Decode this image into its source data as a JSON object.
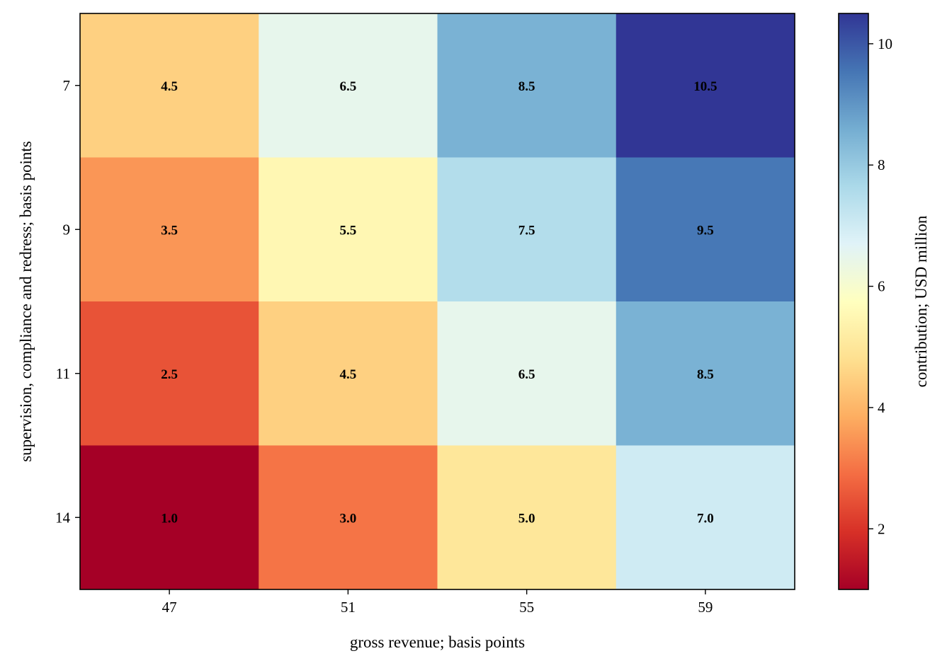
{
  "chart_data": {
    "type": "heatmap",
    "title": "",
    "xlabel": "gross revenue; basis points",
    "ylabel": "supervision, compliance and redress; basis points",
    "x_categories": [
      "47",
      "51",
      "55",
      "59"
    ],
    "y_categories": [
      "7",
      "9",
      "11",
      "14"
    ],
    "values": [
      [
        4.5,
        6.5,
        8.5,
        10.5
      ],
      [
        3.5,
        5.5,
        7.5,
        9.5
      ],
      [
        2.5,
        4.5,
        6.5,
        8.5
      ],
      [
        1.0,
        3.0,
        5.0,
        7.0
      ]
    ],
    "value_labels": [
      [
        "4.5",
        "6.5",
        "8.5",
        "10.5"
      ],
      [
        "3.5",
        "5.5",
        "7.5",
        "9.5"
      ],
      [
        "2.5",
        "4.5",
        "6.5",
        "8.5"
      ],
      [
        "1.0",
        "3.0",
        "5.0",
        "7.0"
      ]
    ],
    "colorbar": {
      "label": "contribution; USD million",
      "range": [
        1.0,
        10.5
      ],
      "ticks": [
        2,
        4,
        6,
        8,
        10
      ],
      "tick_labels": [
        "2",
        "4",
        "6",
        "8",
        "10"
      ],
      "colormap": "RdYlBu",
      "colormap_stops": [
        "#a50026",
        "#d73027",
        "#f46d43",
        "#fdae61",
        "#fee090",
        "#ffffbf",
        "#e0f3f8",
        "#abd9e9",
        "#74add1",
        "#4575b4",
        "#313695"
      ]
    },
    "grid": false
  }
}
